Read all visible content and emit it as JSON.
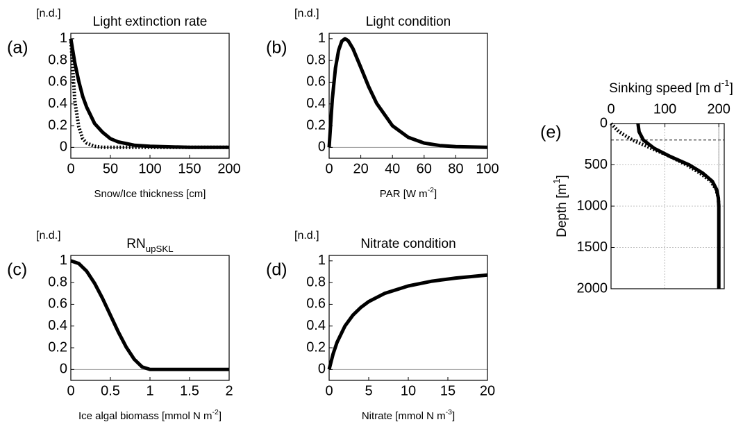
{
  "chart_data": [
    {
      "type": "line",
      "panel": "(a)",
      "title": "Light extinction rate",
      "ylabel": "[n.d.]",
      "xlabel": [
        "Snow/Ice thickness [cm]"
      ],
      "x": [
        0,
        5,
        10,
        15,
        20,
        30,
        40,
        50,
        60,
        80,
        100,
        150,
        200
      ],
      "series": [
        {
          "color": "#000000",
          "dash": "solid",
          "values": [
            1,
            0.78,
            0.61,
            0.47,
            0.37,
            0.22,
            0.14,
            0.08,
            0.05,
            0.02,
            0.01,
            0,
            0
          ]
        },
        {
          "color": "#000000",
          "dash": "dotted",
          "values": [
            1,
            0.43,
            0.19,
            0.08,
            0.04,
            0.01,
            0,
            0,
            0,
            0,
            0,
            0,
            0
          ]
        }
      ],
      "xlim": [
        0,
        200
      ],
      "xticks": [
        0,
        50,
        100,
        150,
        200
      ],
      "ylim": [
        -0.1,
        1.05
      ],
      "yticks": [
        0,
        0.2,
        0.4,
        0.6,
        0.8,
        1
      ],
      "hline": 0,
      "grid": false
    },
    {
      "type": "line",
      "panel": "(b)",
      "title": "Light condition",
      "ylabel": "[n.d.]",
      "xlabel": [
        "PAR [W m",
        "-2",
        "]"
      ],
      "x": [
        0,
        2,
        4,
        6,
        8,
        10,
        12,
        15,
        20,
        25,
        30,
        40,
        50,
        60,
        70,
        80,
        100
      ],
      "series": [
        {
          "color": "#000000",
          "dash": "solid",
          "values": [
            0,
            0.445,
            0.729,
            0.895,
            0.977,
            1,
            0.982,
            0.91,
            0.736,
            0.558,
            0.406,
            0.199,
            0.092,
            0.04,
            0.017,
            0.007,
            0.001
          ]
        }
      ],
      "xlim": [
        0,
        100
      ],
      "xticks": [
        0,
        20,
        40,
        60,
        80,
        100
      ],
      "ylim": [
        -0.1,
        1.05
      ],
      "yticks": [
        0,
        0.2,
        0.4,
        0.6,
        0.8,
        1
      ],
      "hline": 0,
      "grid": false
    },
    {
      "type": "line",
      "panel": "(c)",
      "title": "RN",
      "title_subscript": "upSKL",
      "ylabel": "[n.d.]",
      "xlabel": [
        "Ice algal biomass [mmol N m",
        "-2",
        "]"
      ],
      "x": [
        0,
        0.1,
        0.2,
        0.3,
        0.4,
        0.5,
        0.6,
        0.7,
        0.8,
        0.9,
        1,
        1.5,
        2
      ],
      "series": [
        {
          "color": "#000000",
          "dash": "solid",
          "values": [
            1,
            0.976,
            0.905,
            0.794,
            0.655,
            0.5,
            0.345,
            0.206,
            0.095,
            0.024,
            0,
            0,
            0
          ]
        }
      ],
      "xlim": [
        0,
        2
      ],
      "xticks": [
        0,
        0.5,
        1,
        1.5,
        2
      ],
      "ylim": [
        -0.1,
        1.05
      ],
      "yticks": [
        0,
        0.2,
        0.4,
        0.6,
        0.8,
        1
      ],
      "hline": 0,
      "grid": false
    },
    {
      "type": "line",
      "panel": "(d)",
      "title": "Nitrate condition",
      "ylabel": "[n.d.]",
      "xlabel": [
        "Nitrate [mmol N m",
        "-3",
        "]"
      ],
      "x": [
        0,
        0.5,
        1,
        2,
        3,
        4,
        5,
        7,
        10,
        13,
        16,
        20
      ],
      "series": [
        {
          "color": "#000000",
          "dash": "solid",
          "values": [
            0,
            0.143,
            0.25,
            0.4,
            0.5,
            0.571,
            0.625,
            0.7,
            0.769,
            0.813,
            0.842,
            0.87
          ]
        }
      ],
      "xlim": [
        0,
        20
      ],
      "xticks": [
        0,
        5,
        10,
        15,
        20
      ],
      "ylim": [
        -0.1,
        1.05
      ],
      "yticks": [
        0,
        0.2,
        0.4,
        0.6,
        0.8,
        1
      ],
      "hline": 0,
      "grid": false
    },
    {
      "type": "profile",
      "panel": "(e)",
      "xlabel": [
        "Sinking speed [m d",
        "-1",
        "]"
      ],
      "ylabel": [
        "Depth [m",
        "1",
        "]"
      ],
      "series": [
        {
          "color": "#000000",
          "dash": "solid",
          "values": [
            50,
            52,
            60,
            80,
            110,
            145,
            170,
            188,
            196,
            199,
            200,
            200
          ],
          "depth": [
            0,
            100,
            200,
            300,
            400,
            500,
            600,
            700,
            800,
            900,
            1000,
            2000
          ]
        },
        {
          "color": "#000000",
          "dash": "dotted",
          "values": [
            0,
            15,
            40,
            75,
            110,
            140,
            165,
            185,
            195,
            199,
            200
          ],
          "depth": [
            0,
            100,
            200,
            300,
            400,
            500,
            600,
            700,
            800,
            900,
            1000
          ]
        }
      ],
      "xlim": [
        0,
        210
      ],
      "xticks": [
        0,
        100,
        200
      ],
      "ylim": [
        0,
        2000
      ],
      "yticks": [
        0,
        500,
        1000,
        1500,
        2000
      ],
      "y_inverted": true,
      "x_axis_position": "top",
      "hline": 200,
      "vline": 200,
      "grid": true
    }
  ]
}
